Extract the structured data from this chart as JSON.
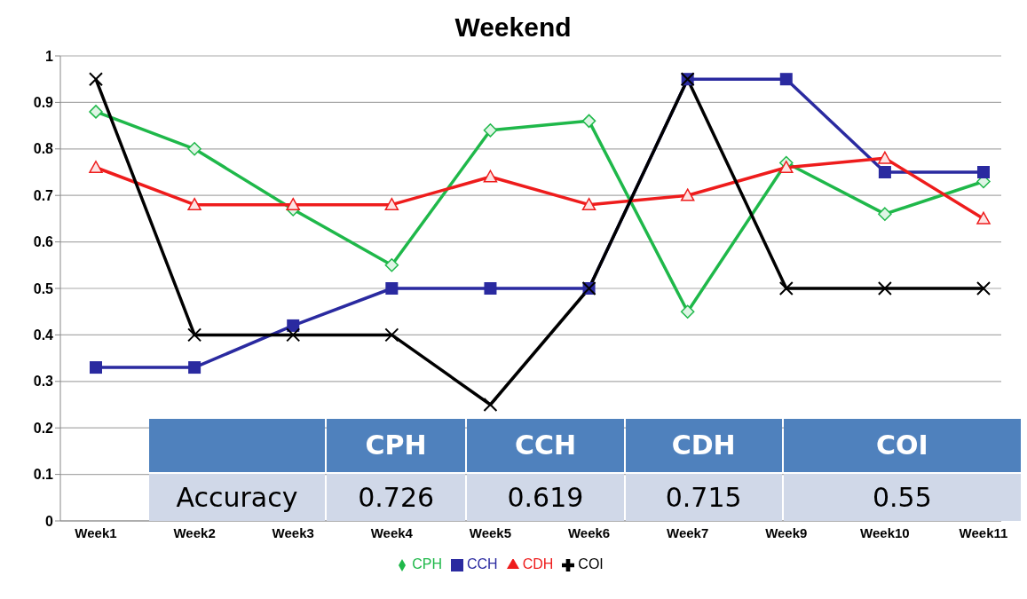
{
  "chart_data": {
    "type": "line",
    "title": "Weekend",
    "categories": [
      "Week1",
      "Week2",
      "Week3",
      "Week4",
      "Week5",
      "Week6",
      "Week7",
      "Week9",
      "Week10",
      "Week11"
    ],
    "series": [
      {
        "name": "CPH",
        "color": "#1fb84a",
        "marker": "diamond",
        "values": [
          0.88,
          0.8,
          0.67,
          0.55,
          0.84,
          0.86,
          0.45,
          0.77,
          0.66,
          0.73
        ]
      },
      {
        "name": "CCH",
        "color": "#2a2aa0",
        "marker": "square",
        "values": [
          0.33,
          0.33,
          0.42,
          0.5,
          0.5,
          0.5,
          0.95,
          0.95,
          0.75,
          0.75
        ]
      },
      {
        "name": "CDH",
        "color": "#ee1c1c",
        "marker": "triangle",
        "values": [
          0.76,
          0.68,
          0.68,
          0.68,
          0.74,
          0.68,
          0.7,
          0.76,
          0.78,
          0.65
        ]
      },
      {
        "name": "COI",
        "color": "#000000",
        "marker": "cross",
        "values": [
          0.95,
          0.4,
          0.4,
          0.4,
          0.25,
          0.5,
          0.95,
          0.5,
          0.5,
          0.5
        ]
      }
    ],
    "ylim": [
      0,
      1
    ],
    "yticks": [
      0,
      0.1,
      0.2,
      0.3,
      0.4,
      0.5,
      0.6,
      0.7,
      0.8,
      0.9,
      1
    ],
    "grid": "y",
    "legend": "bottom",
    "line_style": "solid",
    "annotations": [
      "CPH",
      "CCH",
      "CDH",
      "COI",
      "Accuracy",
      "0.726",
      "0.619",
      "0.715",
      "0.55"
    ]
  }
}
